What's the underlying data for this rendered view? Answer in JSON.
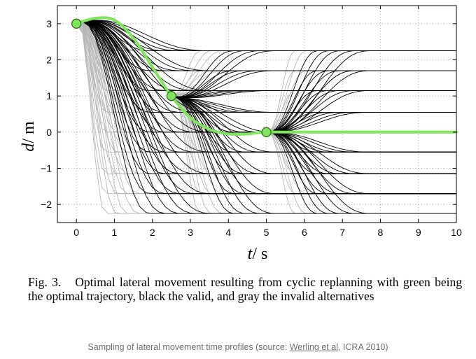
{
  "chart_data": {
    "type": "line",
    "xlabel_var": "t",
    "xlabel_unit": "s",
    "ylabel_var": "d",
    "ylabel_unit": "m",
    "xlim": [
      -0.5,
      10
    ],
    "ylim": [
      -2.5,
      3.5
    ],
    "xticks": [
      0,
      1,
      2,
      3,
      4,
      5,
      6,
      7,
      8,
      9,
      10
    ],
    "yticks": [
      -2,
      -1,
      0,
      1,
      2,
      3
    ],
    "grid": "dotted",
    "colors": {
      "optimal": "#7ee65c",
      "valid": "#000000",
      "invalid": "#b5b5b5",
      "marker_edge": "#2e6b1e"
    },
    "lateral_targets": [
      -2.25,
      -1.7,
      -1.15,
      -0.55,
      0,
      0.55,
      1.15,
      1.7,
      2.25
    ],
    "durations": [
      0.8,
      1.1,
      1.4,
      1.7,
      2.0,
      2.4,
      2.8,
      3.2,
      3.6
    ],
    "series": [
      {
        "role": "optimal",
        "x": [
          0,
          0.5,
          1.0,
          1.5,
          2.0,
          2.5,
          3.0,
          3.5,
          4.0,
          4.5,
          5.0,
          6.0,
          8.0,
          10.0
        ],
        "y": [
          3.0,
          3.15,
          3.1,
          2.6,
          1.8,
          1.0,
          0.4,
          0.08,
          -0.05,
          -0.05,
          0.0,
          0.0,
          0.0,
          0.0
        ]
      }
    ],
    "markers": [
      {
        "x": 0,
        "y": 3.0
      },
      {
        "x": 2.5,
        "y": 1.0
      },
      {
        "x": 5.0,
        "y": 0.0
      }
    ]
  },
  "caption": {
    "label": "Fig. 3.",
    "text": "Optimal lateral movement resulting from cyclic replanning with green being the optimal trajectory, black the valid, and gray the invalid alternatives"
  },
  "source": {
    "prefix": "Sampling of lateral movement time profiles (source: ",
    "link": "Werling et al",
    "suffix": ", ICRA 2010)"
  }
}
